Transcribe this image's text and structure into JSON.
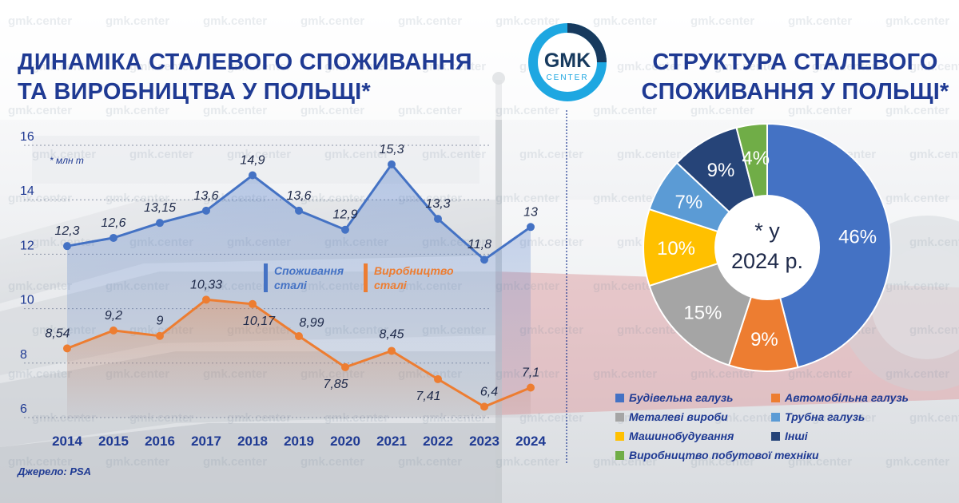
{
  "header": {
    "left_title_line1": "ДИНАМІКА СТАЛЕВОГО СПОЖИВАННЯ",
    "left_title_line2": "ТА ВИРОБНИЦТВА У ПОЛЬЩІ*",
    "right_title_line1": "СТРУКТУРА СТАЛЕВОГО",
    "right_title_line2": "СПОЖИВАННЯ У ПОЛЬЩІ*"
  },
  "logo": {
    "line1": "GMK",
    "line2": "CENTER"
  },
  "watermark_text": "gmk.center",
  "source": "Джерело: PSA",
  "colors": {
    "title": "#1f3a93",
    "consumption": "#4472c4",
    "production": "#ed7d31",
    "logo_ring_dark": "#173a5e",
    "logo_ring_light": "#1ea7e1"
  },
  "chart_data": [
    {
      "type": "line",
      "unit_note": "* млн т",
      "x": [
        "2014",
        "2015",
        "2016",
        "2017",
        "2018",
        "2019",
        "2020",
        "2021",
        "2022",
        "2023",
        "2024"
      ],
      "ylim": [
        6,
        16
      ],
      "yticks": [
        "6",
        "8",
        "10",
        "12",
        "14",
        "16"
      ],
      "grid": true,
      "series": [
        {
          "name": "Споживання сталі",
          "name_line1": "Споживання",
          "name_line2": "сталі",
          "color": "#4472c4",
          "values": [
            12.3,
            12.6,
            13.15,
            13.6,
            14.9,
            13.6,
            12.9,
            15.3,
            13.3,
            11.8,
            13.0
          ],
          "labels": [
            "12,3",
            "12,6",
            "13,15",
            "13,6",
            "14,9",
            "13,6",
            "12,9",
            "15,3",
            "13,3",
            "11,8",
            "13"
          ]
        },
        {
          "name": "Виробництво сталі",
          "name_line1": "Виробництво",
          "name_line2": "сталі",
          "color": "#ed7d31",
          "values": [
            8.54,
            9.2,
            9.0,
            10.33,
            10.17,
            8.99,
            7.85,
            8.45,
            7.41,
            6.4,
            7.1
          ],
          "labels": [
            "8,54",
            "9,2",
            "9",
            "10,33",
            "10,17",
            "8,99",
            "7,85",
            "8,45",
            "7,41",
            "6,4",
            "7,1"
          ]
        }
      ]
    },
    {
      "type": "pie",
      "center_label_line1": "* у",
      "center_label_line2": "2024 р.",
      "slices": [
        {
          "name": "Будівельна галузь",
          "value": 46,
          "label": "46%",
          "color": "#4472c4"
        },
        {
          "name": "Автомобільна галузь",
          "value": 9,
          "label": "9%",
          "color": "#ed7d31"
        },
        {
          "name": "Металеві вироби",
          "value": 15,
          "label": "15%",
          "color": "#a5a5a5"
        },
        {
          "name": "Машинобудування",
          "value": 10,
          "label": "10%",
          "color": "#ffc000"
        },
        {
          "name": "Трубна галузь",
          "value": 7,
          "label": "7%",
          "color": "#5b9bd5"
        },
        {
          "name": "Інші",
          "value": 9,
          "label": "9%",
          "color": "#264478"
        },
        {
          "name": "Виробництво побутової техніки",
          "value": 4,
          "label": "4%",
          "color": "#70ad47"
        }
      ],
      "legend": [
        {
          "name": "Будівельна галузь",
          "color": "#4472c4"
        },
        {
          "name": "Автомобільна галузь",
          "color": "#ed7d31"
        },
        {
          "name": "Металеві вироби",
          "color": "#a5a5a5"
        },
        {
          "name": "Трубна галузь",
          "color": "#5b9bd5"
        },
        {
          "name": "Машинобудування",
          "color": "#ffc000"
        },
        {
          "name": "Інші",
          "color": "#264478"
        },
        {
          "name": "Виробництво побутової техніки",
          "color": "#70ad47"
        }
      ]
    }
  ]
}
